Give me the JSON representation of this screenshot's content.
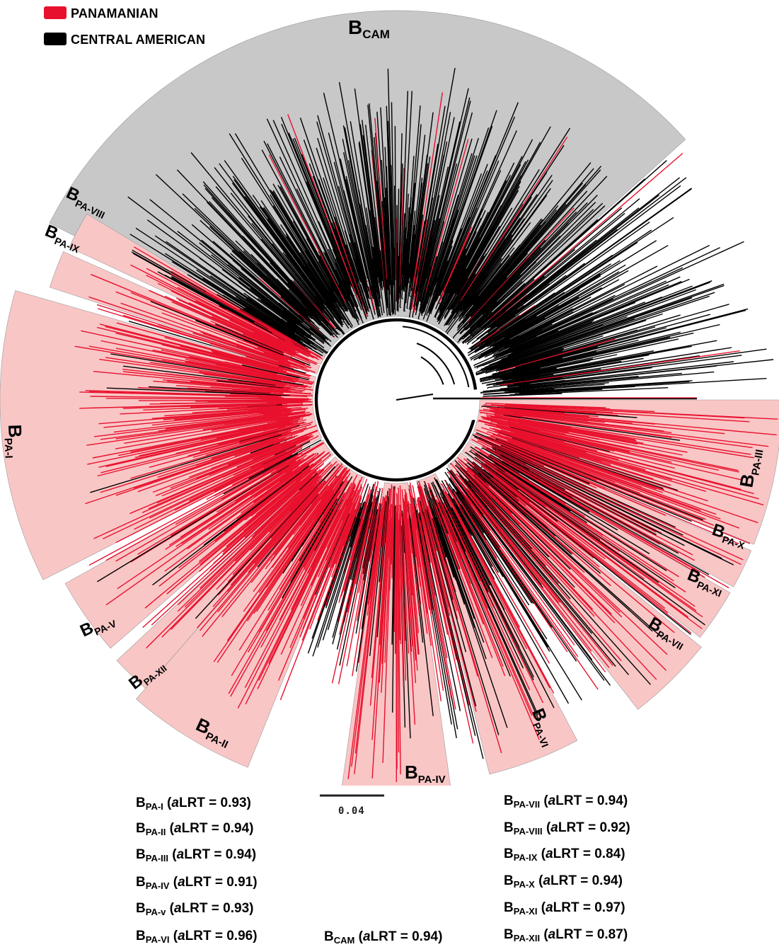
{
  "legend": [
    {
      "label": "PANAMANIAN",
      "color": "#e8112d"
    },
    {
      "label": "CENTRAL AMERICAN",
      "color": "#000000"
    }
  ],
  "colors": {
    "panamanian": "#e8112d",
    "central_american": "#000000",
    "cam_wedge": "#c8c8c8",
    "pa_wedge": "#f9c6c6"
  },
  "clades": [
    {
      "id": "cam",
      "main": "B",
      "sub": "CAM"
    },
    {
      "id": "pa1",
      "main": "B",
      "sub": "PA-I"
    },
    {
      "id": "pa2",
      "main": "B",
      "sub": "PA-II"
    },
    {
      "id": "pa3",
      "main": "B",
      "sub": "PA-III"
    },
    {
      "id": "pa4",
      "main": "B",
      "sub": "PA-IV"
    },
    {
      "id": "pa5",
      "main": "B",
      "sub": "PA-V"
    },
    {
      "id": "pa6",
      "main": "B",
      "sub": "PA-VI"
    },
    {
      "id": "pa7",
      "main": "B",
      "sub": "PA-VII"
    },
    {
      "id": "pa8",
      "main": "B",
      "sub": "PA-VIII"
    },
    {
      "id": "pa9",
      "main": "B",
      "sub": "PA-IX"
    },
    {
      "id": "pa10",
      "main": "B",
      "sub": "PA-X"
    },
    {
      "id": "pa11",
      "main": "B",
      "sub": "PA-XI"
    },
    {
      "id": "pa12",
      "main": "B",
      "sub": "PA-XII"
    }
  ],
  "scale_bar": {
    "label": "0.04"
  },
  "support_stats": {
    "left": [
      {
        "main": "B",
        "sub": "PA-I",
        "open": " (",
        "ital": "a",
        "rest": "LRT = 0.93)"
      },
      {
        "main": "B",
        "sub": "PA-II",
        "open": " (",
        "ital": "a",
        "rest": "LRT = 0.94)"
      },
      {
        "main": "B",
        "sub": "PA-III",
        "open": " (",
        "ital": "a",
        "rest": "LRT = 0.94)"
      },
      {
        "main": "B",
        "sub": "PA-IV",
        "open": " (",
        "ital": "a",
        "rest": "LRT = 0.91)"
      },
      {
        "main": "B",
        "sub": "PA-v",
        "open": " (",
        "ital": "a",
        "rest": "LRT = 0.93)"
      },
      {
        "main": "B",
        "sub": "PA-VI",
        "open": " (",
        "ital": "a",
        "rest": "LRT = 0.96)"
      }
    ],
    "middle": [
      {
        "main": "B",
        "sub": "CAM",
        "open": " (",
        "ital": "a",
        "rest": "LRT = 0.94)"
      }
    ],
    "right": [
      {
        "main": "B",
        "sub": "PA-VII",
        "open": " (",
        "ital": "a",
        "rest": "LRT = 0.94)"
      },
      {
        "main": "B",
        "sub": "PA-VIII",
        "open": " (",
        "ital": "a",
        "rest": "LRT = 0.92)"
      },
      {
        "main": "B",
        "sub": "PA-IX",
        "open": " (",
        "ital": "a",
        "rest": "LRT = 0.84)"
      },
      {
        "main": "B",
        "sub": "PA-X",
        "open": " (",
        "ital": "a",
        "rest": "LRT = 0.94)"
      },
      {
        "main": "B",
        "sub": "PA-XI",
        "open": " (",
        "ital": "a",
        "rest": "LRT = 0.97)"
      },
      {
        "main": "B",
        "sub": "PA-XII",
        "open": " (",
        "ital": "a",
        "rest": "LRT = 0.87)"
      }
    ]
  }
}
